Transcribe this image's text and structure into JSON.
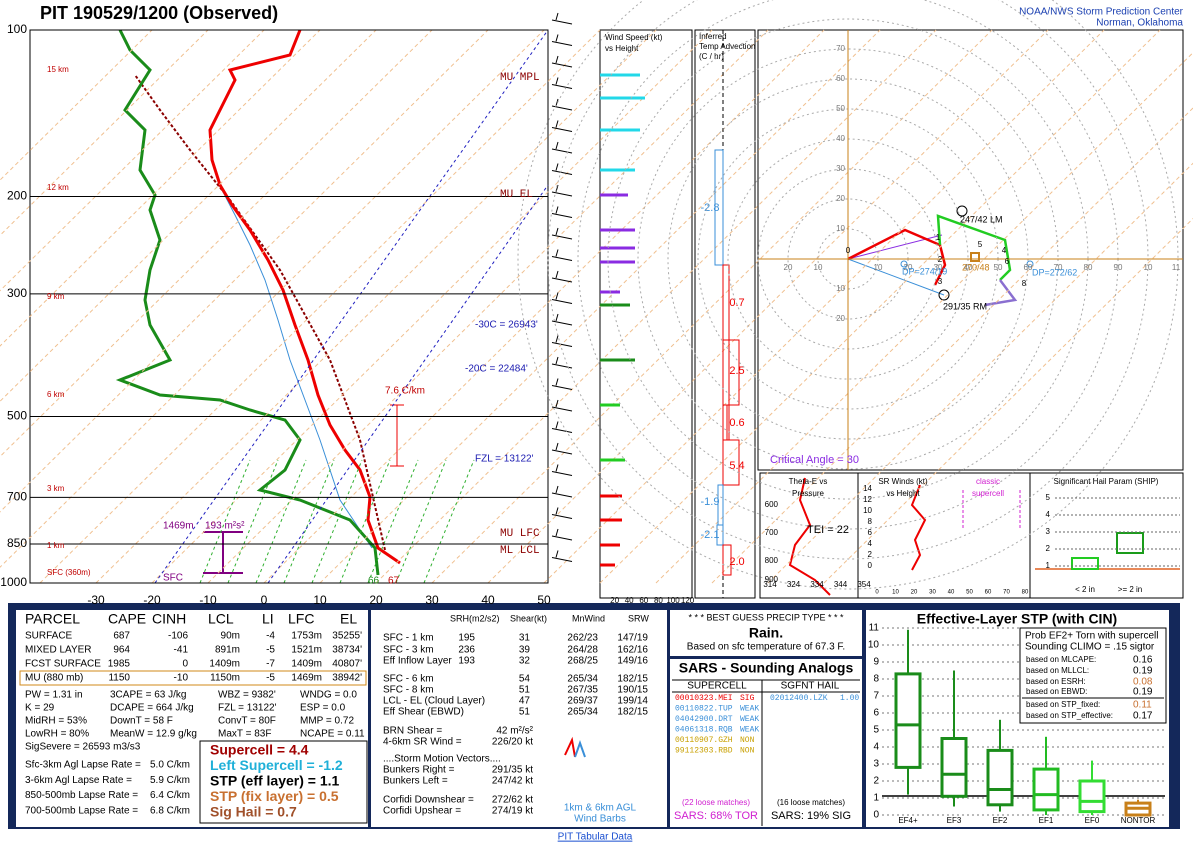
{
  "header": {
    "station_title": "PIT   190529/1200  (Observed)",
    "org": "NOAA/NWS Storm Prediction Center",
    "location": "Norman, Oklahoma"
  },
  "skewt": {
    "pressure_labels": [
      100,
      200,
      300,
      500,
      700,
      850,
      1000
    ],
    "temp_labels": [
      -30,
      -20,
      -10,
      0,
      10,
      20,
      30,
      40,
      50
    ],
    "height_labels": [
      "15 km",
      "12 km",
      "9 km",
      "6 km",
      "3 km",
      "1 km",
      "SFC (360m)"
    ],
    "annotations": {
      "mu_mpl": "MU MPL",
      "mu_el": "MU EL",
      "minus30": "-30C = 26943'",
      "minus20": "-20C = 22484'",
      "fzl": "FZL = 13122'",
      "mu_lfc": "MU LFC",
      "ml_lcl": "ML LCL",
      "lapse": "7.6 C/km",
      "eff_top": "1469m",
      "eff_srh": "193 m²s²",
      "eff_bottom": "SFC",
      "sfc_td": "66",
      "sfc_t": "67"
    }
  },
  "wind_speed": {
    "title": [
      "Wind Speed (kt)",
      "vs Height"
    ],
    "ticks": [
      20,
      40,
      60,
      80,
      100,
      120
    ]
  },
  "temp_advection": {
    "title": [
      "Inferred",
      "Temp Advection",
      "(C / hr)"
    ],
    "values": [
      "-2.8",
      "0.7",
      "2.5",
      "0.6",
      "5.4",
      "-1.9",
      "-2.1",
      "2.0"
    ]
  },
  "hodograph": {
    "ring_labels": [
      10,
      20,
      30,
      40,
      50,
      60,
      70
    ],
    "x_labels": [
      "20",
      "10",
      "10",
      "20",
      "30",
      "40",
      "50",
      "60",
      "70",
      "80",
      "90",
      "10",
      "11"
    ],
    "y_labels_below": [
      "10",
      "20"
    ],
    "left_mover": "247/42 LM",
    "right_mover": "291/35 RM",
    "dp_up": "DP=274/19",
    "dp_down": "DP=272/62",
    "mean": "270/48",
    "critical_angle": "Critical Angle = 30",
    "points": [
      "0",
      "1",
      "2",
      "3",
      "4",
      "5",
      "6",
      "8"
    ]
  },
  "theta_e": {
    "title": [
      "Theta-E vs",
      "Pressure"
    ],
    "tei": "TEI = 22",
    "p_ticks": [
      900,
      800,
      700,
      600
    ],
    "x_ticks": [
      314,
      324,
      334,
      344,
      354
    ]
  },
  "sr_winds": {
    "title": [
      "SR Winds (kt)",
      "vs Height"
    ],
    "note": [
      "classic",
      "supercell"
    ],
    "y_ticks": [
      0,
      2,
      4,
      6,
      8,
      10,
      12,
      14
    ],
    "x_ticks": [
      0,
      10,
      20,
      30,
      40,
      50,
      60,
      70,
      80
    ]
  },
  "ship": {
    "title": "Significant Hail Param (SHIP)",
    "y_ticks": [
      1,
      2,
      3,
      4,
      5
    ],
    "categories": [
      "< 2 in",
      ">= 2 in"
    ]
  },
  "parcel": {
    "headers": [
      "PARCEL",
      "CAPE",
      "CINH",
      "LCL",
      "LI",
      "LFC",
      "EL"
    ],
    "rows": [
      [
        "SURFACE",
        687,
        -106,
        "90m",
        -4,
        "1753m",
        "35255'"
      ],
      [
        "MIXED LAYER",
        964,
        -41,
        "891m",
        -5,
        "1521m",
        "38734'"
      ],
      [
        "FCST SURFACE",
        1985,
        0,
        "1409m",
        -7,
        "1409m",
        "40807'"
      ],
      [
        "MU    (880 mb)",
        1150,
        -10,
        "1150m",
        -5,
        "1469m",
        "38942'"
      ]
    ],
    "misc": [
      [
        "PW = 1.31 in",
        "3CAPE = 63 J/kg",
        "WBZ = 9382'",
        "WNDG = 0.0"
      ],
      [
        "K = 29",
        "DCAPE = 664 J/kg",
        "FZL = 13122'",
        "ESP = 0.0"
      ],
      [
        "MidRH = 53%",
        "DownT = 58 F",
        "ConvT = 80F",
        "MMP = 0.72"
      ],
      [
        "LowRH = 80%",
        "MeanW = 12.9 g/kg",
        "MaxT = 83F",
        "NCAPE = 0.11"
      ],
      [
        "SigSevere = 26593 m3/s3"
      ]
    ],
    "lapse": [
      [
        "Sfc-3km Agl Lapse Rate =",
        "5.0 C/km"
      ],
      [
        "3-6km Agl Lapse Rate =",
        "5.9 C/km"
      ],
      [
        "850-500mb Lapse Rate =",
        "6.4 C/km"
      ],
      [
        "700-500mb Lapse Rate =",
        "6.8 C/km"
      ]
    ],
    "indices": [
      "Supercell = 4.4",
      "Left Supercell = -1.2",
      "STP (eff layer) = 1.1",
      "STP (fix layer) = 0.5",
      "Sig Hail = 0.7"
    ]
  },
  "kinematics": {
    "headers": [
      "SRH(m2/s2)",
      "Shear(kt)",
      "MnWind",
      "SRW"
    ],
    "rows": [
      [
        "SFC - 1 km",
        195,
        31,
        "262/23",
        "147/19"
      ],
      [
        "SFC - 3 km",
        236,
        39,
        "264/28",
        "162/16"
      ],
      [
        "Eff Inflow Layer",
        193,
        32,
        "268/25",
        "149/16"
      ],
      [
        "SFC - 6 km",
        null,
        54,
        "265/34",
        "182/15"
      ],
      [
        "SFC - 8 km",
        null,
        51,
        "267/35",
        "190/15"
      ],
      [
        "LCL - EL (Cloud Layer)",
        null,
        47,
        "269/37",
        "199/14"
      ],
      [
        "Eff Shear (EBWD)",
        null,
        51,
        "265/34",
        "182/15"
      ]
    ],
    "lines": [
      [
        "BRN Shear =",
        "42 m²/s²"
      ],
      [
        "4-6km SR Wind =",
        "226/20 kt"
      ],
      [
        "....Storm Motion Vectors....",
        null
      ],
      [
        "Bunkers Right =",
        "291/35 kt"
      ],
      [
        "Bunkers Left =",
        "247/42 kt"
      ],
      [
        "Corfidi Downshear =",
        "272/62 kt"
      ],
      [
        "Corfidi Upshear =",
        "274/19 kt"
      ]
    ],
    "barbs_note": [
      "1km & 6km AGL",
      "Wind Barbs"
    ]
  },
  "precip": {
    "title": "* * * BEST GUESS PRECIP TYPE * * *",
    "type": "Rain.",
    "basis": "Based on sfc temperature of 67.3 F."
  },
  "sars": {
    "title": "SARS - Sounding Analogs",
    "supercell_header": "SUPERCELL",
    "hail_header": "SGFNT HAIL",
    "supercell": [
      [
        "00010323.MEI",
        "SIG"
      ],
      [
        "00110822.TUP",
        "WEAK"
      ],
      [
        "04042900.DRT",
        "WEAK"
      ],
      [
        "04061318.RQB",
        "WEAK"
      ],
      [
        "00110907.GZH",
        "NON"
      ],
      [
        "99112303.RBD",
        "NON"
      ]
    ],
    "hail": [
      [
        "02012400.LZK",
        "1.00"
      ]
    ],
    "supercell_loose": "(22 loose matches)",
    "hail_loose": "(16 loose matches)",
    "supercell_result": "SARS: 68% TOR",
    "hail_result": "SARS: 19% SIG"
  },
  "stp": {
    "title": "Effective-Layer STP (with CIN)",
    "y_ticks": [
      0,
      1,
      2,
      3,
      4,
      5,
      6,
      7,
      8,
      9,
      10,
      11
    ],
    "categories": [
      "EF4+",
      "EF3",
      "EF2",
      "EF1",
      "EF0",
      "NONTOR"
    ],
    "boxes": [
      [
        1.2,
        2.8,
        5.3,
        8.3,
        10.9
      ],
      [
        0.5,
        1.1,
        2.4,
        4.5,
        8.5
      ],
      [
        0.2,
        0.6,
        1.5,
        3.8,
        5.6
      ],
      [
        0,
        0.3,
        1.2,
        2.7,
        4.6
      ],
      [
        0,
        0.2,
        0.8,
        2.0,
        3.2
      ],
      [
        0,
        0,
        0.4,
        0.7,
        0.9
      ]
    ],
    "prob_title": [
      "Prob EF2+ Torn with supercell",
      "Sounding CLIMO = .15 sigtor"
    ],
    "prob_rows": [
      [
        "based on MLCAPE:",
        0.16
      ],
      [
        "based on MLLCL:",
        0.19
      ],
      [
        "based on ESRH:",
        0.08
      ],
      [
        "based on EBWD:",
        0.19
      ],
      [
        "based on STP_fixed:",
        0.11
      ],
      [
        "based on STP_effective:",
        0.17
      ]
    ]
  },
  "footer": "PIT Tabular Data"
}
